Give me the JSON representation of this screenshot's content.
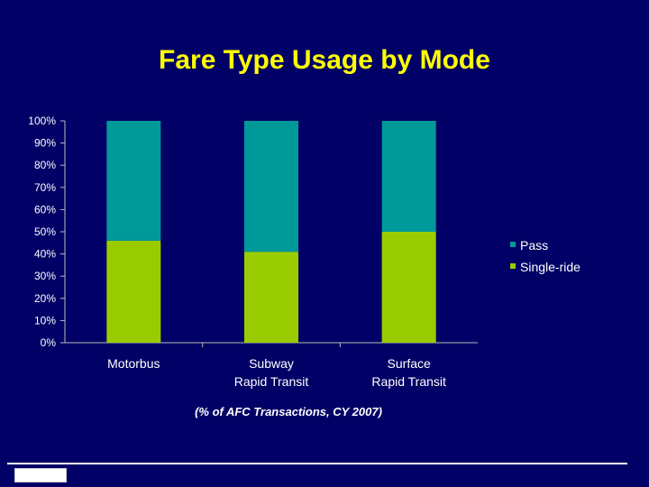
{
  "title": "Fare Type Usage by Mode",
  "note": "(% of AFC Transactions, CY 2007)",
  "colors": {
    "background": "#000066",
    "title": "#FFFF00",
    "pass": "#009999",
    "single": "#99CC00",
    "text": "#FFFFFF"
  },
  "chart_data": {
    "type": "bar",
    "stacked": true,
    "title": "Fare Type Usage by Mode",
    "categories": [
      [
        "Motorbus"
      ],
      [
        "Subway",
        "Rapid Transit"
      ],
      [
        "Surface",
        "Rapid Transit"
      ]
    ],
    "series": [
      {
        "name": "Single-ride",
        "values": [
          46,
          41,
          50
        ]
      },
      {
        "name": "Pass",
        "values": [
          54,
          59,
          50
        ]
      }
    ],
    "ylim": [
      0,
      100
    ],
    "yticks": [
      "0%",
      "10%",
      "20%",
      "30%",
      "40%",
      "50%",
      "60%",
      "70%",
      "80%",
      "90%",
      "100%"
    ],
    "grid": false,
    "legend": "right",
    "legend_order": [
      "Pass",
      "Single-ride"
    ]
  }
}
